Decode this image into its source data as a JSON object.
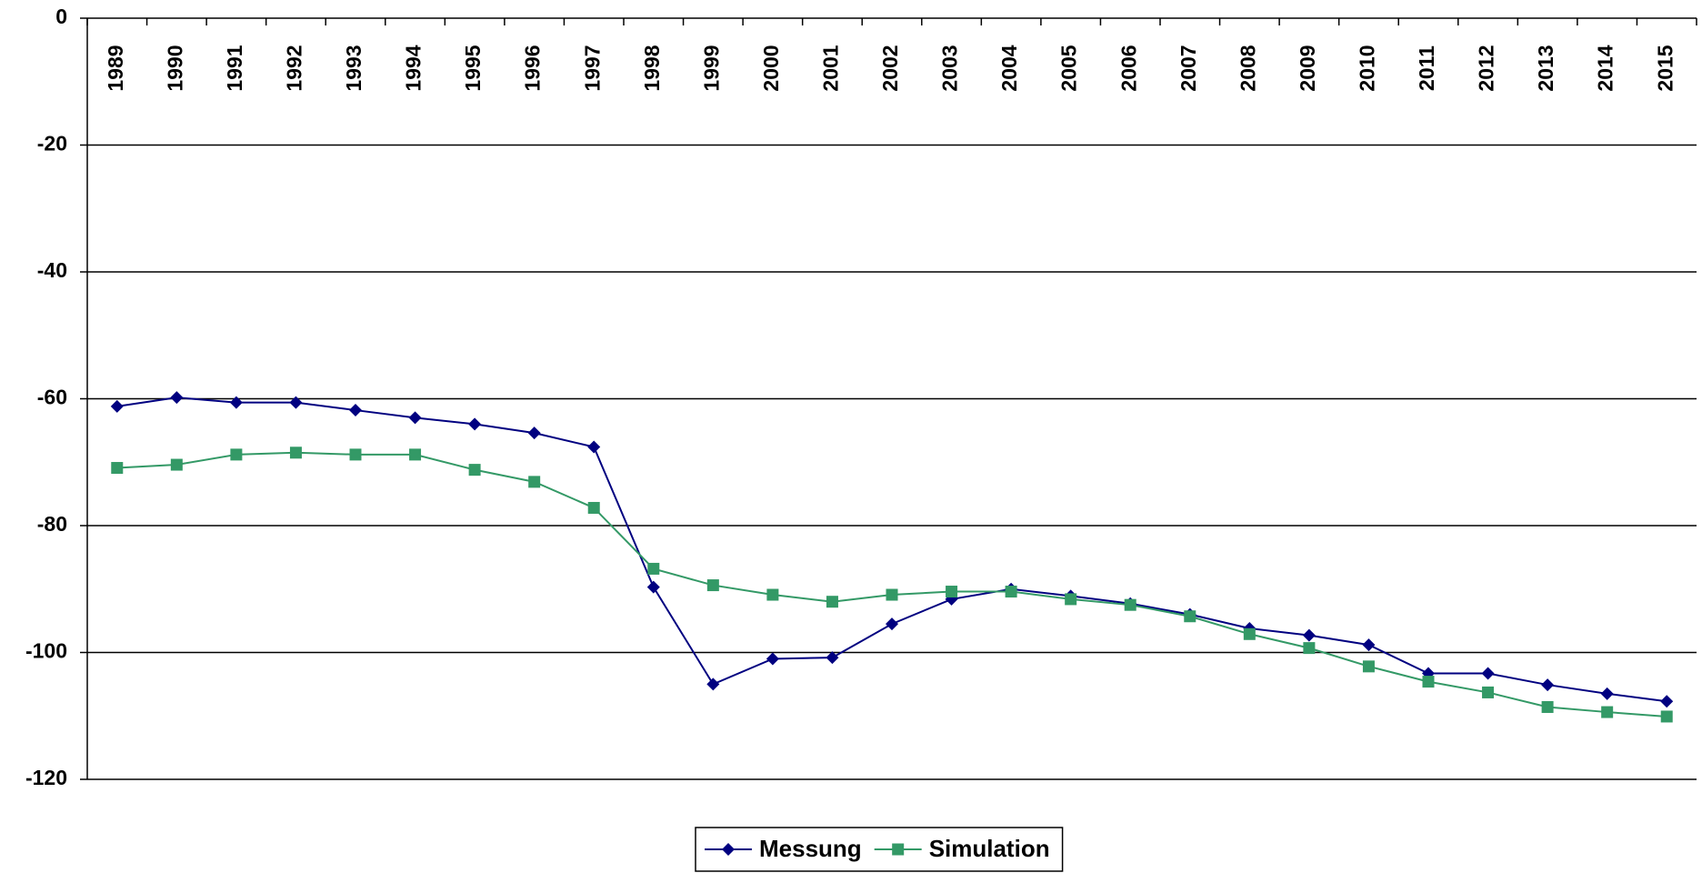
{
  "chart_data": {
    "type": "line",
    "categories": [
      "1989",
      "1990",
      "1991",
      "1992",
      "1993",
      "1994",
      "1995",
      "1996",
      "1997",
      "1998",
      "1999",
      "2000",
      "2001",
      "2002",
      "2003",
      "2004",
      "2005",
      "2006",
      "2007",
      "2008",
      "2009",
      "2010",
      "2011",
      "2012",
      "2013",
      "2014",
      "2015"
    ],
    "series": [
      {
        "name": "Messung",
        "color": "#000080",
        "marker": "diamond",
        "values": [
          -61.2,
          -59.8,
          -60.6,
          -60.6,
          -61.8,
          -63.0,
          -64.0,
          -65.4,
          -67.6,
          -89.7,
          -105.0,
          -101.0,
          -100.8,
          -95.5,
          -91.6,
          -90.0,
          -91.1,
          -92.3,
          -94.0,
          -96.2,
          -97.3,
          -98.8,
          -103.3,
          -103.3,
          -105.1,
          -106.5,
          -107.7
        ]
      },
      {
        "name": "Simulation",
        "color": "#339966",
        "marker": "square",
        "values": [
          -70.9,
          -70.4,
          -68.8,
          -68.5,
          -68.8,
          -68.8,
          -71.2,
          -73.1,
          -77.2,
          -86.8,
          -89.4,
          -90.9,
          -92.0,
          -90.9,
          -90.4,
          -90.4,
          -91.6,
          -92.5,
          -94.3,
          -97.1,
          -99.3,
          -102.2,
          -104.6,
          -106.3,
          -108.6,
          -109.4,
          -110.1
        ]
      }
    ],
    "ylim": [
      -120,
      0
    ],
    "yticks": [
      0,
      -20,
      -40,
      -60,
      -80,
      -100,
      -120
    ],
    "grid": true,
    "legend": "bottom"
  }
}
